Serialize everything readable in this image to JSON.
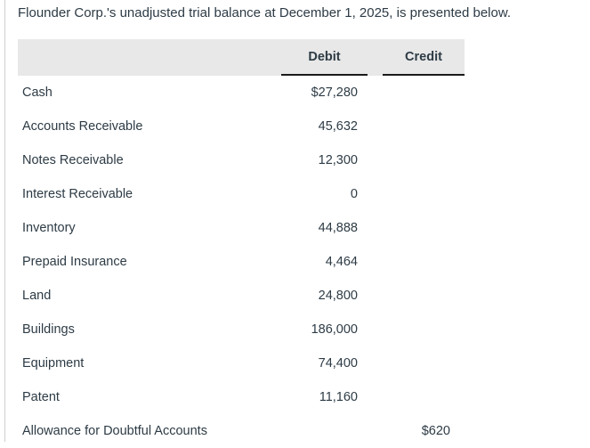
{
  "problem_statement": "Flounder Corp.'s unadjusted trial balance at December 1, 2025, is presented below.",
  "table": {
    "debit_label": "Debit",
    "credit_label": "Credit",
    "rows": [
      {
        "account": "Cash",
        "debit": "$27,280",
        "credit": ""
      },
      {
        "account": "Accounts Receivable",
        "debit": "45,632",
        "credit": ""
      },
      {
        "account": "Notes Receivable",
        "debit": "12,300",
        "credit": ""
      },
      {
        "account": "Interest Receivable",
        "debit": "0",
        "credit": ""
      },
      {
        "account": "Inventory",
        "debit": "44,888",
        "credit": ""
      },
      {
        "account": "Prepaid Insurance",
        "debit": "4,464",
        "credit": ""
      },
      {
        "account": "Land",
        "debit": "24,800",
        "credit": ""
      },
      {
        "account": "Buildings",
        "debit": "186,000",
        "credit": ""
      },
      {
        "account": "Equipment",
        "debit": "74,400",
        "credit": ""
      },
      {
        "account": "Patent",
        "debit": "11,160",
        "credit": ""
      },
      {
        "account": "Allowance for Doubtful Accounts",
        "debit": "",
        "credit": "$620"
      }
    ]
  },
  "colors": {
    "header_background": "#e8e8e8",
    "text": "#2d3b45",
    "header_underline": "#1b1b1b",
    "panel_left_border": "#cfcfcf"
  }
}
